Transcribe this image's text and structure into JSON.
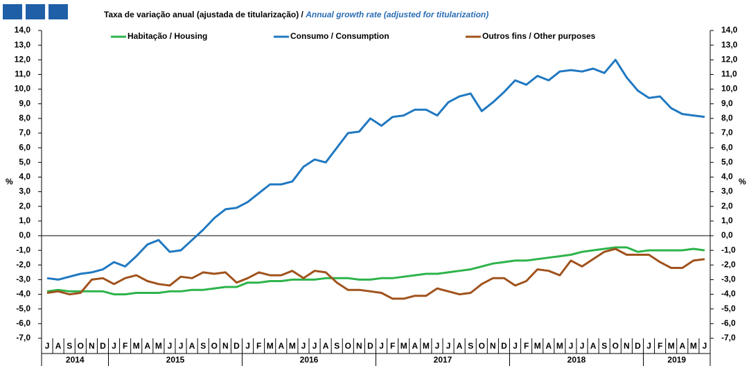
{
  "chart_data": {
    "type": "line",
    "title": "Taxa de variação anual (ajustada de titularização) / ",
    "subtitle": "Annual growth rate (adjusted for titularization)",
    "y_label": "%",
    "categories": [
      "J",
      "A",
      "S",
      "O",
      "N",
      "D",
      "J",
      "F",
      "M",
      "A",
      "M",
      "J",
      "J",
      "A",
      "S",
      "O",
      "N",
      "D",
      "J",
      "F",
      "M",
      "A",
      "M",
      "J",
      "J",
      "A",
      "S",
      "O",
      "N",
      "D",
      "J",
      "F",
      "M",
      "A",
      "M",
      "J",
      "J",
      "A",
      "S",
      "O",
      "N",
      "D",
      "J",
      "F",
      "M",
      "A",
      "M",
      "J",
      "J",
      "A",
      "S",
      "O",
      "N",
      "D",
      "J",
      "F",
      "M",
      "A",
      "M",
      "J"
    ],
    "years": [
      "2014",
      "2015",
      "2016",
      "2017",
      "2018",
      "2019"
    ],
    "series": [
      {
        "name": "Habitação / Housing",
        "color": "#2db34a",
        "values": [
          -3.8,
          -3.7,
          -3.8,
          -3.8,
          -3.8,
          -3.8,
          -4.0,
          -4.0,
          -3.9,
          -3.9,
          -3.9,
          -3.8,
          -3.8,
          -3.7,
          -3.7,
          -3.6,
          -3.5,
          -3.5,
          -3.2,
          -3.2,
          -3.1,
          -3.1,
          -3.0,
          -3.0,
          -3.0,
          -2.9,
          -2.9,
          -2.9,
          -3.0,
          -3.0,
          -2.9,
          -2.9,
          -2.8,
          -2.7,
          -2.6,
          -2.6,
          -2.5,
          -2.4,
          -2.3,
          -2.1,
          -1.9,
          -1.8,
          -1.7,
          -1.7,
          -1.6,
          -1.5,
          -1.4,
          -1.3,
          -1.1,
          -1.0,
          -0.9,
          -0.8,
          -0.8,
          -1.1,
          -1.0,
          -1.0,
          -1.0,
          -1.0,
          -0.9,
          -1.0
        ]
      },
      {
        "name": "Consumo / Consumption",
        "color": "#1f78c1",
        "values": [
          -2.9,
          -3.0,
          -2.8,
          -2.6,
          -2.5,
          -2.3,
          -1.8,
          -2.1,
          -1.4,
          -0.6,
          -0.3,
          -1.1,
          -1.0,
          -0.3,
          0.4,
          1.2,
          1.8,
          1.9,
          2.3,
          2.9,
          3.5,
          3.5,
          3.7,
          4.7,
          5.2,
          5.0,
          6.0,
          7.0,
          7.1,
          8.0,
          7.5,
          8.1,
          8.2,
          8.6,
          8.6,
          8.2,
          9.1,
          9.5,
          9.7,
          8.5,
          9.1,
          9.8,
          10.6,
          10.3,
          10.9,
          10.6,
          11.2,
          11.3,
          11.2,
          11.4,
          11.1,
          12.0,
          10.8,
          9.9,
          9.4,
          9.5,
          8.7,
          8.3,
          8.2,
          8.1
        ]
      },
      {
        "name": "Outros fins / Other purposes",
        "color": "#a0521c",
        "values": [
          -3.9,
          -3.8,
          -4.0,
          -3.9,
          -3.0,
          -2.9,
          -3.3,
          -2.9,
          -2.7,
          -3.1,
          -3.3,
          -3.4,
          -2.8,
          -2.9,
          -2.5,
          -2.6,
          -2.5,
          -3.2,
          -2.9,
          -2.5,
          -2.7,
          -2.7,
          -2.4,
          -2.9,
          -2.4,
          -2.5,
          -3.2,
          -3.7,
          -3.7,
          -3.8,
          -3.9,
          -4.3,
          -4.3,
          -4.1,
          -4.1,
          -3.6,
          -3.8,
          -4.0,
          -3.9,
          -3.3,
          -2.9,
          -2.9,
          -3.4,
          -3.1,
          -2.3,
          -2.4,
          -2.7,
          -1.7,
          -2.1,
          -1.6,
          -1.1,
          -0.9,
          -1.3,
          -1.3,
          -1.3,
          -1.8,
          -2.2,
          -2.2,
          -1.7,
          -1.6
        ]
      }
    ],
    "ylim": [
      -7,
      14
    ],
    "yticks": [
      {
        "value": 14,
        "label": "14,0"
      },
      {
        "value": 13,
        "label": "13,0"
      },
      {
        "value": 12,
        "label": "12,0"
      },
      {
        "value": 11,
        "label": "11,0"
      },
      {
        "value": 10,
        "label": "10,0"
      },
      {
        "value": 9,
        "label": "9,0"
      },
      {
        "value": 8,
        "label": "8,0"
      },
      {
        "value": 7,
        "label": "7,0"
      },
      {
        "value": 6,
        "label": "6,0"
      },
      {
        "value": 5,
        "label": "5,0"
      },
      {
        "value": 4,
        "label": "4,0"
      },
      {
        "value": 3,
        "label": "3,0"
      },
      {
        "value": 2,
        "label": "2,0"
      },
      {
        "value": 1,
        "label": "1,0"
      },
      {
        "value": 0,
        "label": "0,0"
      },
      {
        "value": -1,
        "label": "-1,0"
      },
      {
        "value": -2,
        "label": "-2,0"
      },
      {
        "value": -3,
        "label": "-3,0"
      },
      {
        "value": -4,
        "label": "-4,0"
      },
      {
        "value": -5,
        "label": "-5,0"
      },
      {
        "value": -6,
        "label": "-6,0"
      },
      {
        "value": -7,
        "label": "-7,0"
      }
    ],
    "grid": false
  }
}
